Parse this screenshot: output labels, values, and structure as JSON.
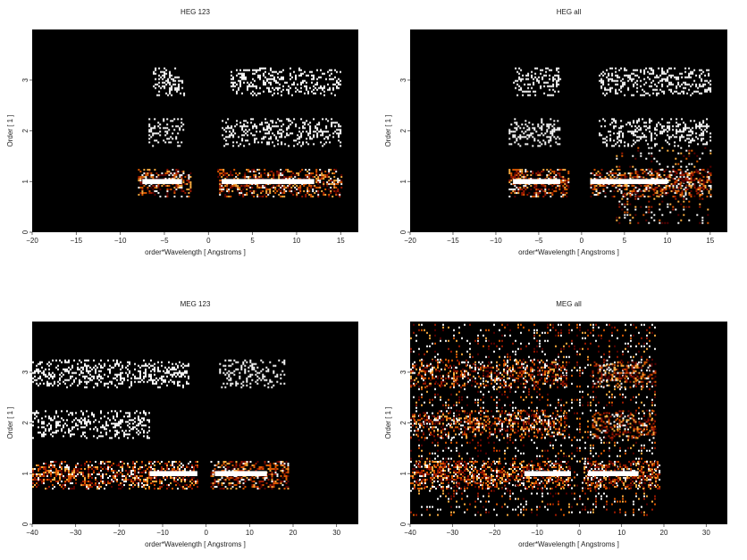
{
  "chart_data": [
    {
      "type": "heatmap",
      "title": "HEG 123",
      "xlabel": "order*Wavelength [ Angstroms ]",
      "ylabel": "Order [ 1 ]",
      "xlim": [
        -20,
        17
      ],
      "ylim": [
        0,
        4
      ],
      "xticks": [
        -20,
        -15,
        -10,
        -5,
        0,
        5,
        10,
        15
      ],
      "xtick_labels": [
        "−20",
        "−15",
        "−10",
        "−5",
        "0",
        "5",
        "10",
        "15"
      ],
      "yticks": [
        0,
        1,
        2,
        3
      ],
      "yticks_labels": [
        "0",
        "1",
        "2",
        "3"
      ],
      "background": "#000000",
      "colormap": [
        "#5a0000",
        "#a01a00",
        "#e05a00",
        "#ffb040",
        "#ffffff"
      ],
      "bands": [
        {
          "order": 1,
          "x_ranges": [
            [
              -8,
              -2
            ],
            [
              1,
              15
            ]
          ],
          "peak_ranges": [
            [
              -7.5,
              -3
            ],
            [
              1.5,
              12
            ]
          ],
          "intensity": "high"
        },
        {
          "order": 2,
          "x_ranges": [
            [
              -6.8,
              -2.8
            ],
            [
              1.5,
              15
            ]
          ],
          "intensity": "low"
        },
        {
          "order": 3,
          "x_ranges": [
            [
              -6.3,
              -2.8
            ],
            [
              2.5,
              15
            ]
          ],
          "intensity": "low"
        }
      ]
    },
    {
      "type": "heatmap",
      "title": "HEG all",
      "xlabel": "order*Wavelength [ Angstroms ]",
      "ylabel": "Order [ 1 ]",
      "xlim": [
        -20,
        17
      ],
      "ylim": [
        0,
        4
      ],
      "xticks": [
        -20,
        -15,
        -10,
        -5,
        0,
        5,
        10,
        15
      ],
      "xtick_labels": [
        "−20",
        "−15",
        "−10",
        "−5",
        "0",
        "5",
        "10",
        "15"
      ],
      "yticks": [
        0,
        1,
        2,
        3
      ],
      "yticks_labels": [
        "0",
        "1",
        "2",
        "3"
      ],
      "background": "#000000",
      "colormap": [
        "#5a0000",
        "#a01a00",
        "#e05a00",
        "#ffb040",
        "#ffffff"
      ],
      "bands": [
        {
          "order": 1,
          "x_ranges": [
            [
              -8.5,
              -1.5
            ],
            [
              1,
              15
            ]
          ],
          "peak_ranges": [
            [
              -8,
              -2.5
            ],
            [
              1,
              10
            ]
          ],
          "intensity": "high"
        },
        {
          "order": 2,
          "x_ranges": [
            [
              -8.5,
              -2.5
            ],
            [
              2,
              15
            ]
          ],
          "intensity": "low"
        },
        {
          "order": 3,
          "x_ranges": [
            [
              -8,
              -2.5
            ],
            [
              2,
              15
            ]
          ],
          "intensity": "low"
        }
      ],
      "extra_emission": [
        {
          "x_range": [
            4,
            15
          ],
          "y_range": [
            0.2,
            1.7
          ],
          "intensity": "high"
        }
      ]
    },
    {
      "type": "heatmap",
      "title": "MEG 123",
      "xlabel": "order*Wavelength [ Angstroms ]",
      "ylabel": "Order [ 1 ]",
      "xlim": [
        -40,
        35
      ],
      "ylim": [
        0,
        4
      ],
      "xticks": [
        -40,
        -30,
        -20,
        -10,
        0,
        10,
        20,
        30
      ],
      "xtick_labels": [
        "−40",
        "−30",
        "−20",
        "−10",
        "0",
        "10",
        "20",
        "30"
      ],
      "yticks": [
        0,
        1,
        2,
        3
      ],
      "yticks_labels": [
        "0",
        "1",
        "2",
        "3"
      ],
      "background": "#000000",
      "colormap": [
        "#5a0000",
        "#a01a00",
        "#e05a00",
        "#ffb040",
        "#ffffff"
      ],
      "bands": [
        {
          "order": 1,
          "x_ranges": [
            [
              -40,
              -2
            ],
            [
              1,
              19
            ]
          ],
          "peak_ranges": [
            [
              -13,
              -2
            ],
            [
              2,
              14
            ]
          ],
          "intensity": "high"
        },
        {
          "order": 2,
          "x_ranges": [
            [
              -40,
              -13
            ]
          ],
          "intensity": "low"
        },
        {
          "order": 3,
          "x_ranges": [
            [
              -40,
              -4
            ],
            [
              3,
              18
            ]
          ],
          "intensity": "low"
        }
      ]
    },
    {
      "type": "heatmap",
      "title": "MEG all",
      "xlabel": "order*Wavelength [ Angstroms ]",
      "ylabel": "Order [ 1 ]",
      "xlim": [
        -40,
        35
      ],
      "ylim": [
        0,
        4
      ],
      "xticks": [
        -40,
        -30,
        -20,
        -10,
        0,
        10,
        20,
        30
      ],
      "xtick_labels": [
        "−40",
        "−30",
        "−20",
        "−10",
        "0",
        "10",
        "20",
        "30"
      ],
      "yticks": [
        0,
        1,
        2,
        3
      ],
      "yticks_labels": [
        "0",
        "1",
        "2",
        "3"
      ],
      "background": "#000000",
      "colormap": [
        "#5a0000",
        "#a01a00",
        "#e05a00",
        "#ffb040",
        "#ffffff"
      ],
      "bands": [
        {
          "order": 1,
          "x_ranges": [
            [
              -40,
              -2
            ],
            [
              1,
              19
            ]
          ],
          "peak_ranges": [
            [
              -13,
              -2
            ],
            [
              2,
              14
            ]
          ],
          "intensity": "high"
        },
        {
          "order": 2,
          "x_ranges": [
            [
              -40,
              -3
            ],
            [
              3,
              18
            ]
          ],
          "intensity": "medium"
        },
        {
          "order": 3,
          "x_ranges": [
            [
              -40,
              -3
            ],
            [
              3,
              18
            ]
          ],
          "intensity": "medium"
        }
      ],
      "extra_emission": [
        {
          "x_range": [
            -40,
            18
          ],
          "y_range": [
            0.2,
            4
          ],
          "intensity": "medium"
        }
      ]
    }
  ]
}
